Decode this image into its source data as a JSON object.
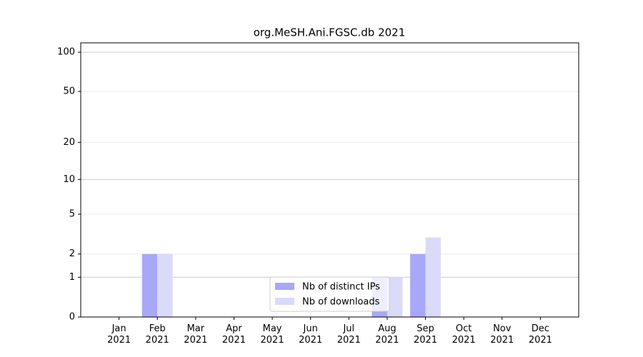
{
  "chart_data": {
    "type": "bar",
    "title": "org.MeSH.Ani.FGSC.db 2021",
    "categories": [
      "Jan 2021",
      "Feb 2021",
      "Mar 2021",
      "Apr 2021",
      "May 2021",
      "Jun 2021",
      "Jul 2021",
      "Aug 2021",
      "Sep 2021",
      "Oct 2021",
      "Nov 2021",
      "Dec 2021"
    ],
    "series": [
      {
        "name": "Nb of distinct IPs",
        "color": "#a8a8f8",
        "values": [
          0,
          2,
          0,
          0,
          0,
          0,
          0,
          1,
          2,
          0,
          0,
          0
        ]
      },
      {
        "name": "Nb of downloads",
        "color": "#dadaf9",
        "values": [
          0,
          2,
          0,
          0,
          0,
          0,
          0,
          1,
          3,
          0,
          0,
          0
        ]
      }
    ],
    "yscale": "log1p",
    "ylim": [
      0,
      118
    ],
    "yticks": [
      0,
      1,
      2,
      5,
      10,
      20,
      50,
      100
    ],
    "grid": true,
    "legend": "lower center"
  }
}
